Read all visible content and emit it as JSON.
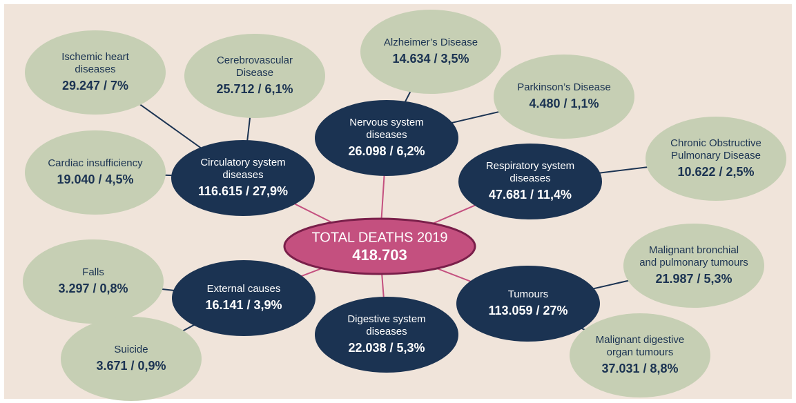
{
  "center": {
    "title": "TOTAL DEATHS 2019",
    "value": "418.703"
  },
  "groups": [
    {
      "label": [
        "Circulatory system",
        "diseases"
      ],
      "value": "116.615 / 27,9%",
      "children": [
        {
          "label": [
            "Ischemic heart",
            "diseases"
          ],
          "value": "29.247 / 7%"
        },
        {
          "label": [
            "Cerebrovascular",
            "Disease"
          ],
          "value": "25.712 / 6,1%"
        },
        {
          "label": [
            "Cardiac insufficiency"
          ],
          "value": "19.040 / 4,5%"
        }
      ]
    },
    {
      "label": [
        "Nervous system",
        "diseases"
      ],
      "value": "26.098 / 6,2%",
      "children": [
        {
          "label": [
            "Alzheimer’s Disease"
          ],
          "value": "14.634 / 3,5%"
        },
        {
          "label": [
            "Parkinson’s Disease"
          ],
          "value": "4.480 / 1,1%"
        }
      ]
    },
    {
      "label": [
        "Respiratory system",
        "diseases"
      ],
      "value": "47.681 / 11,4%",
      "children": [
        {
          "label": [
            "Chronic Obstructive",
            "Pulmonary Disease"
          ],
          "value": "10.622 / 2,5%"
        }
      ]
    },
    {
      "label": [
        "External causes"
      ],
      "value": "16.141 / 3,9%",
      "children": [
        {
          "label": [
            "Falls"
          ],
          "value": "3.297 / 0,8%"
        },
        {
          "label": [
            "Suicide"
          ],
          "value": "3.671 / 0,9%"
        }
      ]
    },
    {
      "label": [
        "Digestive system",
        "diseases"
      ],
      "value": "22.038 / 5,3%",
      "children": []
    },
    {
      "label": [
        "Tumours"
      ],
      "value": "113.059 / 27%",
      "children": [
        {
          "label": [
            "Malignant bronchial",
            "and pulmonary tumours"
          ],
          "value": "21.987 / 5,3%"
        },
        {
          "label": [
            "Malignant digestive",
            "organ tumours"
          ],
          "value": "37.031 / 8,8%"
        }
      ]
    }
  ]
}
